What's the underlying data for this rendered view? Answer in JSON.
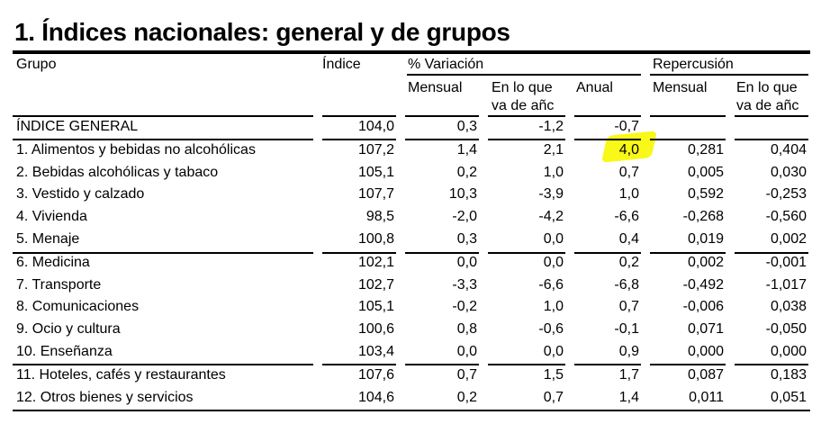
{
  "title": "1. Índices nacionales: general y de grupos",
  "highlight_color": "#f7f700",
  "header": {
    "grupo": "Grupo",
    "indice": "Índice",
    "variacion": "% Variación",
    "repercusion": "Repercusión",
    "var_mensual": "Mensual",
    "var_ano_1": "En lo que",
    "var_ano_2": "va de añc",
    "var_anual": "Anual",
    "rep_mensual": "Mensual",
    "rep_ano_1": "En lo que",
    "rep_ano_2": "va de añc"
  },
  "rows": [
    [
      "ÍNDICE GENERAL",
      "104,0",
      "0,3",
      "-1,2",
      "-0,7",
      "",
      ""
    ],
    [
      "1. Alimentos y bebidas no alcohólicas",
      "107,2",
      "1,4",
      "2,1",
      "4,0",
      "0,281",
      "0,404"
    ],
    [
      "2. Bebidas alcohólicas y tabaco",
      "105,1",
      "0,2",
      "1,0",
      "0,7",
      "0,005",
      "0,030"
    ],
    [
      "3. Vestido y calzado",
      "107,7",
      "10,3",
      "-3,9",
      "1,0",
      "0,592",
      "-0,253"
    ],
    [
      "4. Vivienda",
      "98,5",
      "-2,0",
      "-4,2",
      "-6,6",
      "-0,268",
      "-0,560"
    ],
    [
      "5. Menaje",
      "100,8",
      "0,3",
      "0,0",
      "0,4",
      "0,019",
      "0,002"
    ],
    [
      "6. Medicina",
      "102,1",
      "0,0",
      "0,0",
      "0,2",
      "0,002",
      "-0,001"
    ],
    [
      "7. Transporte",
      "102,7",
      "-3,3",
      "-6,6",
      "-6,8",
      "-0,492",
      "-1,017"
    ],
    [
      "8. Comunicaciones",
      "105,1",
      "-0,2",
      "1,0",
      "0,7",
      "-0,006",
      "0,038"
    ],
    [
      "9. Ocio y cultura",
      "100,6",
      "0,8",
      "-0,6",
      "-0,1",
      "0,071",
      "-0,050"
    ],
    [
      "10. Enseñanza",
      "103,4",
      "0,0",
      "0,0",
      "0,9",
      "0,000",
      "0,000"
    ],
    [
      "11. Hoteles, cafés y restaurantes",
      "107,6",
      "0,7",
      "1,5",
      "1,7",
      "0,087",
      "0,183"
    ],
    [
      "12. Otros bienes y servicios",
      "104,6",
      "0,2",
      "0,7",
      "1,4",
      "0,011",
      "0,051"
    ]
  ],
  "highlighted_cell": {
    "row": 1,
    "column": "Anual"
  }
}
